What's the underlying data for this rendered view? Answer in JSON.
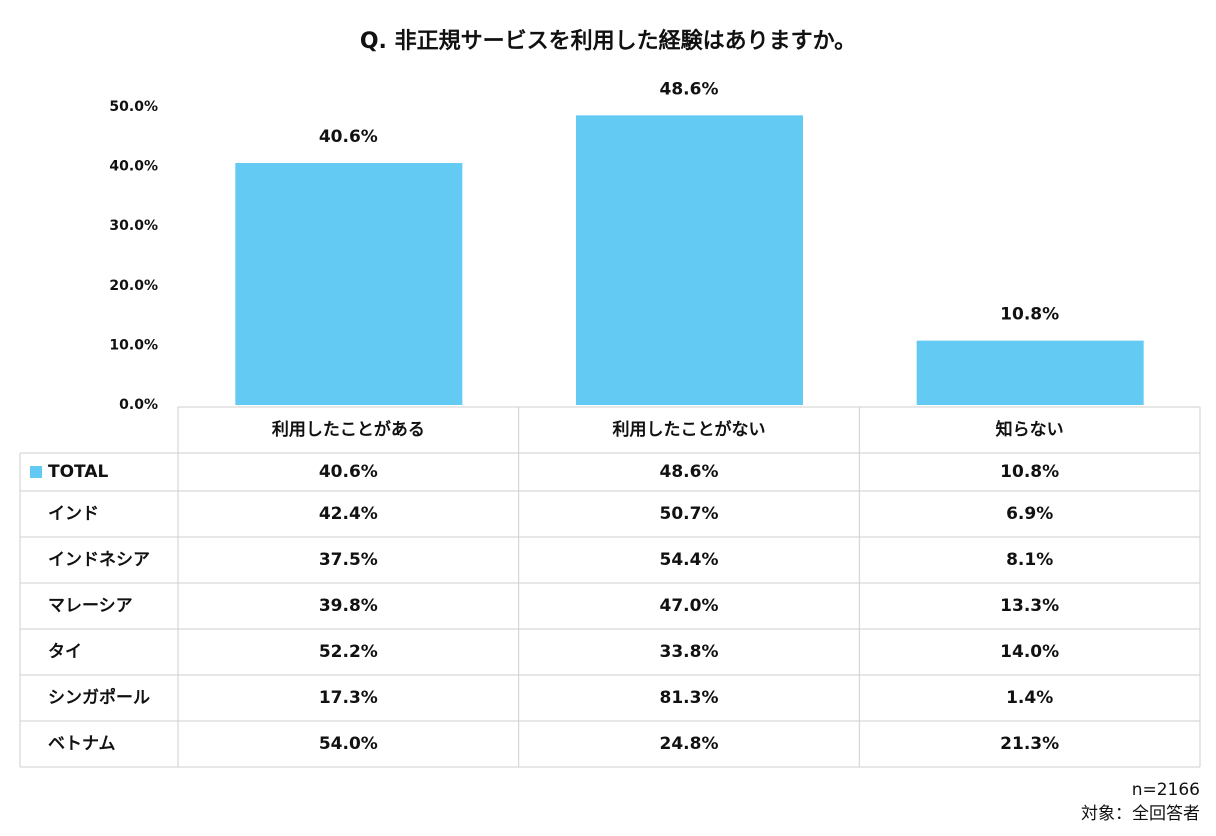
{
  "chart_data": {
    "type": "bar",
    "title": "Q. 非正規サービスを利用した経験はありますか。",
    "categories": [
      "利用したことがある",
      "利用したことがない",
      "知らない"
    ],
    "series": [
      {
        "name": "TOTAL",
        "color": "#62caf3",
        "values": [
          40.6,
          48.6,
          10.8
        ],
        "value_labels": [
          "40.6%",
          "48.6%",
          "10.8%"
        ]
      }
    ],
    "ylim": [
      0,
      50
    ],
    "yticks": [
      {
        "value": 0,
        "label": "0.0%"
      },
      {
        "value": 10,
        "label": "10.0%"
      },
      {
        "value": 20,
        "label": "20.0%"
      },
      {
        "value": 30,
        "label": "30.0%"
      },
      {
        "value": 40,
        "label": "40.0%"
      },
      {
        "value": 50,
        "label": "50.0%"
      }
    ],
    "grid": false
  },
  "table": {
    "rows": [
      {
        "name": "インド",
        "values": [
          "42.4%",
          "50.7%",
          "6.9%"
        ]
      },
      {
        "name": "インドネシア",
        "values": [
          "37.5%",
          "54.4%",
          "8.1%"
        ]
      },
      {
        "name": "マレーシア",
        "values": [
          "39.8%",
          "47.0%",
          "13.3%"
        ]
      },
      {
        "name": "タイ",
        "values": [
          "52.2%",
          "33.8%",
          "14.0%"
        ]
      },
      {
        "name": "シンガポール",
        "values": [
          "17.3%",
          "81.3%",
          "1.4%"
        ]
      },
      {
        "name": "ベトナム",
        "values": [
          "54.0%",
          "24.8%",
          "21.3%"
        ]
      }
    ]
  },
  "notes": [
    "n=2166",
    "対象：全回答者"
  ]
}
